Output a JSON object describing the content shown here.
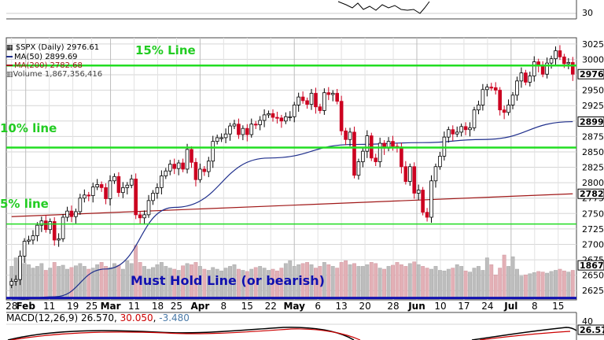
{
  "chart_data": {
    "type": "candlestick",
    "title": "$SPX (Daily) 2976.61",
    "legend": [
      {
        "name": "$SPX (Daily)",
        "value": "2976.61",
        "color": "#000000"
      },
      {
        "name": "MA(50)",
        "value": "2899.69",
        "color": "#1f2f8c"
      },
      {
        "name": "MA(200)",
        "value": "2782.68",
        "color": "#a01818"
      },
      {
        "name": "Volume",
        "value": "1,867,356,416",
        "color": "#808080"
      }
    ],
    "ylim": [
      2610,
      3035
    ],
    "y_ticks": [
      2625,
      2650,
      2675,
      2700,
      2725,
      2750,
      2775,
      2800,
      2825,
      2850,
      2875,
      2900,
      2925,
      2950,
      2975,
      3000,
      3025
    ],
    "y_tick_labels": [
      "2625",
      "2650",
      "2675",
      "2700",
      "2725",
      "2750",
      "2775",
      "2800",
      "2825",
      "2850",
      "2875",
      "2900",
      "2925",
      "2950",
      "2975",
      "3000",
      "3025"
    ],
    "last_value_labels": [
      {
        "value": 2976,
        "label": "2976"
      },
      {
        "value": 2899,
        "label": "2899"
      },
      {
        "value": 2782,
        "label": "2782"
      },
      {
        "value": 2666,
        "label": "1867"
      }
    ],
    "x_ticks": [
      {
        "label": "28",
        "bold": false
      },
      {
        "label": "Feb",
        "bold": true
      },
      {
        "label": "11",
        "bold": false
      },
      {
        "label": "19",
        "bold": false
      },
      {
        "label": "25",
        "bold": false
      },
      {
        "label": "Mar",
        "bold": true
      },
      {
        "label": "11",
        "bold": false
      },
      {
        "label": "18",
        "bold": false
      },
      {
        "label": "25",
        "bold": false
      },
      {
        "label": "Apr",
        "bold": true
      },
      {
        "label": "8",
        "bold": false
      },
      {
        "label": "15",
        "bold": false
      },
      {
        "label": "22",
        "bold": false
      },
      {
        "label": "May",
        "bold": true
      },
      {
        "label": "6",
        "bold": false
      },
      {
        "label": "13",
        "bold": false
      },
      {
        "label": "20",
        "bold": false
      },
      {
        "label": "28",
        "bold": false
      },
      {
        "label": "Jun",
        "bold": true
      },
      {
        "label": "10",
        "bold": false
      },
      {
        "label": "17",
        "bold": false
      },
      {
        "label": "24",
        "bold": false
      },
      {
        "label": "Jul",
        "bold": true
      },
      {
        "label": "8",
        "bold": false
      },
      {
        "label": "15",
        "bold": false
      }
    ],
    "candle_closes": [
      2640,
      2643,
      2681,
      2705,
      2707,
      2714,
      2731,
      2738,
      2724,
      2737,
      2707,
      2709,
      2744,
      2754,
      2745,
      2753,
      2775,
      2780,
      2779,
      2793,
      2797,
      2792,
      2774,
      2803,
      2810,
      2784,
      2792,
      2796,
      2806,
      2748,
      2743,
      2748,
      2771,
      2783,
      2792,
      2811,
      2819,
      2830,
      2823,
      2832,
      2822,
      2854,
      2833,
      2805,
      2822,
      2818,
      2835,
      2867,
      2873,
      2873,
      2879,
      2892,
      2895,
      2878,
      2888,
      2878,
      2895,
      2894,
      2901,
      2910,
      2912,
      2906,
      2905,
      2900,
      2907,
      2907,
      2926,
      2939,
      2933,
      2927,
      2945,
      2923,
      2917,
      2946,
      2943,
      2945,
      2932,
      2884,
      2870,
      2882,
      2812,
      2834,
      2851,
      2876,
      2840,
      2834,
      2864,
      2856,
      2867,
      2859,
      2858,
      2826,
      2802,
      2826,
      2783,
      2788,
      2752,
      2744,
      2803,
      2826,
      2843,
      2874,
      2886,
      2879,
      2882,
      2891,
      2886,
      2889,
      2918,
      2926,
      2951,
      2955,
      2954,
      2950,
      2918,
      2914,
      2926,
      2942,
      2965,
      2978,
      2963,
      2973,
      2996,
      2990,
      2976,
      2994,
      3001,
      3014,
      3004,
      2993,
      2995,
      2976
    ],
    "horizontal_lines": [
      {
        "name": "15% Line",
        "value": 2990,
        "color": "#22dd22"
      },
      {
        "name": "10% line",
        "value": 2857,
        "color": "#22dd22"
      },
      {
        "name": "5% line",
        "value": 2733,
        "color": "#22dd22"
      },
      {
        "name": "Must Hold Line (or bearish)",
        "value": 2613,
        "color": "#1010b0"
      }
    ],
    "ma50": {
      "start": 2610,
      "via": [
        {
          "i": 10,
          "v": 2615
        },
        {
          "i": 22,
          "v": 2660
        },
        {
          "i": 38,
          "v": 2760
        },
        {
          "i": 60,
          "v": 2840
        },
        {
          "i": 80,
          "v": 2862
        },
        {
          "i": 96,
          "v": 2865
        },
        {
          "i": 110,
          "v": 2870
        }
      ],
      "end": 2899
    },
    "ma200": {
      "start": 2745,
      "end": 2782
    },
    "volume": {
      "label": "Volume 1,867,356,416",
      "bars": [
        0.55,
        0.7,
        0.65,
        0.6,
        0.58,
        0.52,
        0.55,
        0.6,
        0.48,
        0.52,
        0.62,
        0.55,
        0.57,
        0.5,
        0.53,
        0.56,
        0.6,
        0.55,
        0.5,
        0.52,
        0.58,
        0.62,
        0.55,
        0.53,
        0.6,
        0.57,
        0.5,
        0.65,
        0.6,
        0.92,
        0.62,
        0.55,
        0.5,
        0.53,
        0.58,
        0.62,
        0.55,
        0.52,
        0.5,
        0.48,
        0.56,
        0.6,
        0.58,
        0.62,
        0.55,
        0.5,
        0.48,
        0.53,
        0.5,
        0.47,
        0.52,
        0.55,
        0.58,
        0.5,
        0.48,
        0.46,
        0.5,
        0.53,
        0.55,
        0.52,
        0.48,
        0.5,
        0.47,
        0.52,
        0.6,
        0.65,
        0.55,
        0.58,
        0.6,
        0.62,
        0.58,
        0.52,
        0.55,
        0.62,
        0.58,
        0.55,
        0.52,
        0.62,
        0.65,
        0.58,
        0.6,
        0.55,
        0.55,
        0.58,
        0.62,
        0.6,
        0.52,
        0.5,
        0.55,
        0.57,
        0.62,
        0.58,
        0.55,
        0.6,
        0.63,
        0.58,
        0.55,
        0.52,
        0.5,
        0.55,
        0.48,
        0.47,
        0.5,
        0.52,
        0.58,
        0.55,
        0.47,
        0.45,
        0.52,
        0.55,
        0.48,
        0.7,
        0.58,
        0.4,
        0.52,
        0.75,
        0.55,
        0.72,
        0.5,
        0.38,
        0.4,
        0.42,
        0.44,
        0.46,
        0.45,
        0.43,
        0.46,
        0.48,
        0.5,
        0.47,
        0.45,
        0.48
      ]
    },
    "top_panel": {
      "tick_label": "30"
    },
    "macd": {
      "label": "MACD(12,26,9)",
      "value": "26.570",
      "signal": "30.050",
      "histogram": "-3.480",
      "tick_label": "40",
      "right_label": "26.57"
    }
  }
}
